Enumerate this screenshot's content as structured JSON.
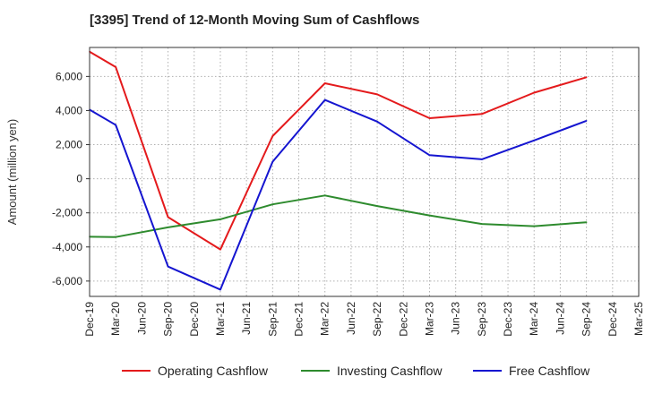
{
  "chart_data": {
    "type": "line",
    "title": "[3395]  Trend of 12-Month Moving Sum of Cashflows",
    "xlabel": "",
    "ylabel": "Amount (million yen)",
    "ylim": [
      -6900,
      7700
    ],
    "yticks": [
      6000,
      4000,
      2000,
      0,
      -2000,
      -4000,
      -6000
    ],
    "ytick_labels": [
      "6,000",
      "4,000",
      "2,000",
      "0",
      "-2,000",
      "-4,000",
      "-6,000"
    ],
    "categories": [
      "Dec-19",
      "Mar-20",
      "Jun-20",
      "Sep-20",
      "Dec-20",
      "Mar-21",
      "Jun-21",
      "Sep-21",
      "Dec-21",
      "Mar-22",
      "Jun-22",
      "Sep-22",
      "Dec-22",
      "Mar-23",
      "Jun-23",
      "Sep-23",
      "Dec-23",
      "Mar-24",
      "Jun-24",
      "Sep-24",
      "Dec-24",
      "Mar-25"
    ],
    "grid": true,
    "legend_position": "bottom",
    "series": [
      {
        "name": "Operating Cashflow",
        "color": "#e41a1c",
        "values": [
          7450,
          6550,
          null,
          -2250,
          null,
          -4150,
          null,
          2500,
          null,
          5600,
          null,
          4950,
          null,
          3550,
          null,
          3800,
          null,
          5050,
          null,
          5950,
          null,
          null
        ]
      },
      {
        "name": "Investing Cashflow",
        "color": "#2e8b2e",
        "values": [
          -3400,
          -3420,
          null,
          -2850,
          null,
          -2380,
          null,
          -1500,
          null,
          -980,
          null,
          -1600,
          null,
          -2150,
          null,
          -2650,
          null,
          -2780,
          null,
          -2550,
          null,
          null
        ]
      },
      {
        "name": "Free Cashflow",
        "color": "#1515d0",
        "values": [
          4050,
          3150,
          null,
          -5150,
          null,
          -6500,
          null,
          1000,
          null,
          4620,
          null,
          3350,
          null,
          1380,
          null,
          1140,
          null,
          2250,
          null,
          3400,
          null,
          null
        ]
      }
    ]
  }
}
